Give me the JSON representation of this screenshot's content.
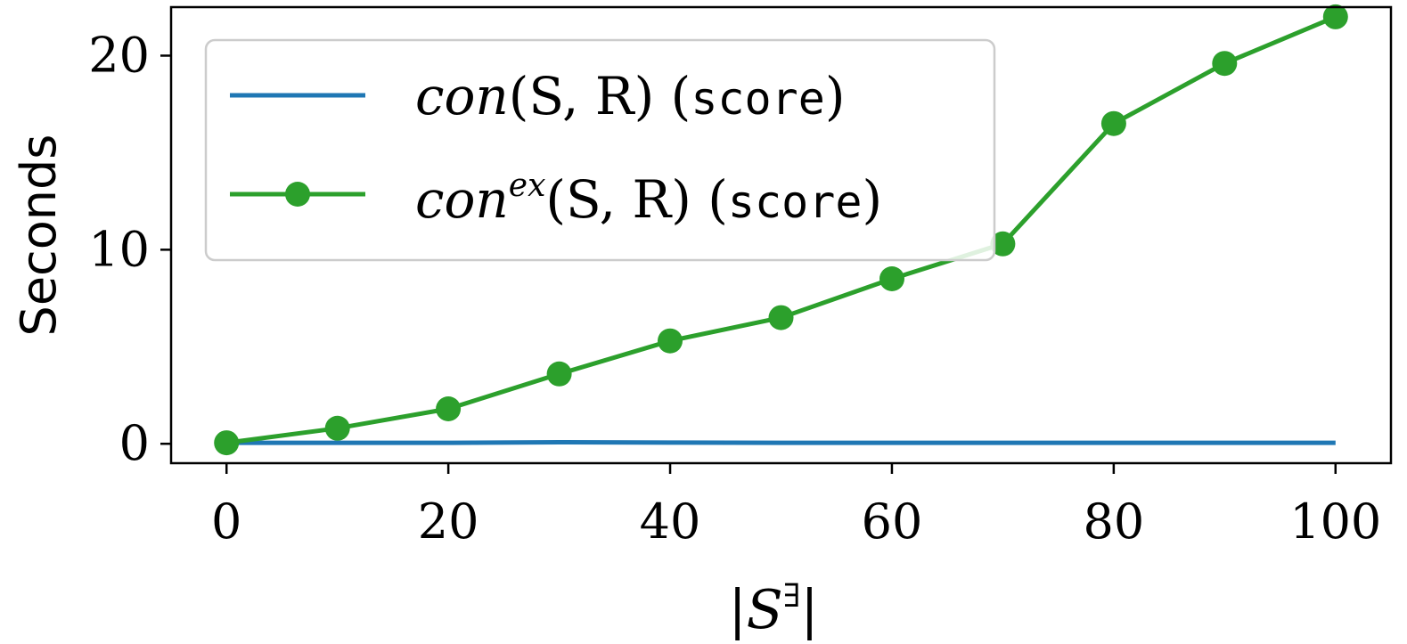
{
  "chart_data": {
    "type": "line",
    "ylabel": "Seconds",
    "xlabel": {
      "base": "S",
      "superscript": "∃",
      "wrapper": "|"
    },
    "xlim": [
      -5,
      105
    ],
    "ylim": [
      -1,
      22.5
    ],
    "xticks": [
      0,
      20,
      40,
      60,
      80,
      100
    ],
    "yticks": [
      0,
      10,
      20
    ],
    "grid": false,
    "legend_position": "top-left",
    "series": [
      {
        "legend": {
          "func": "con",
          "sup": "",
          "args": "(S, R)",
          "tag": "score"
        },
        "color": "#1f77b4",
        "marker": false,
        "x": [
          0,
          10,
          20,
          30,
          40,
          50,
          60,
          70,
          80,
          90,
          100
        ],
        "y": [
          0.05,
          0.05,
          0.05,
          0.08,
          0.06,
          0.05,
          0.05,
          0.05,
          0.05,
          0.05,
          0.05
        ]
      },
      {
        "legend": {
          "func": "con",
          "sup": "ex",
          "args": "(S, R)",
          "tag": "score"
        },
        "color": "#2ca02c",
        "marker": true,
        "x": [
          0,
          10,
          20,
          30,
          40,
          50,
          60,
          70,
          80,
          90,
          100
        ],
        "y": [
          0.05,
          0.8,
          1.8,
          3.6,
          5.3,
          6.5,
          8.5,
          10.3,
          16.5,
          19.6,
          22.0
        ]
      }
    ]
  }
}
